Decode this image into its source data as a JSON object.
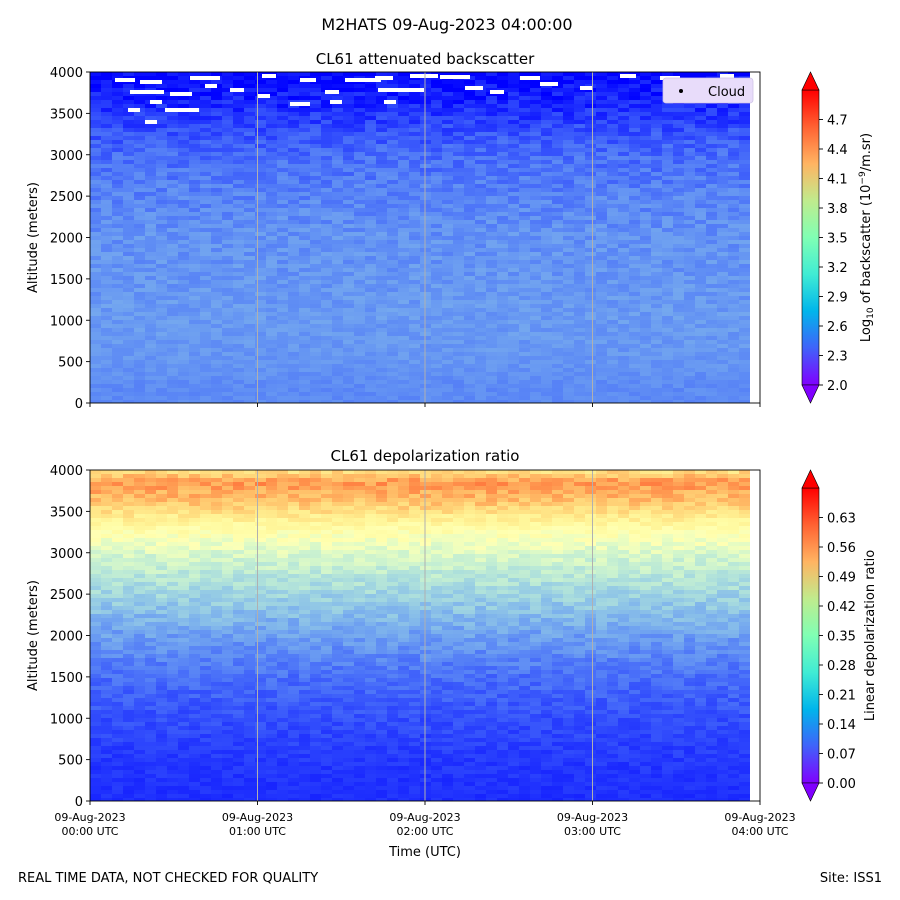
{
  "figure": {
    "suptitle": "M2HATS 09-Aug-2023 04:00:00",
    "footer_left": "REAL TIME DATA, NOT CHECKED FOR QUALITY",
    "footer_right": "Site: ISS1"
  },
  "chart_data": [
    {
      "type": "heatmap",
      "title": "CL61 attenuated backscatter",
      "ylabel": "Altitude (meters)",
      "xlabel": "",
      "x_range": [
        "09-Aug-2023 00:00 UTC",
        "09-Aug-2023 04:00 UTC"
      ],
      "ylim": [
        0,
        4000
      ],
      "y_ticks": [
        0,
        500,
        1000,
        1500,
        2000,
        2500,
        3000,
        3500,
        4000
      ],
      "x_tick_labels": [],
      "grid": "vertical at each hour",
      "legend": {
        "position": "upper-right",
        "entries": [
          "Cloud"
        ]
      },
      "colorbar": {
        "label": "Log10 of backscatter (10^-9/m.sr)",
        "label_base": "Log",
        "label_sub": "10",
        "label_mid": " of backscatter (10",
        "label_sup": "−9",
        "label_end": "/m.sr)",
        "range": [
          2.0,
          5.0
        ],
        "ticks": [
          "2.0",
          "2.3",
          "2.6",
          "2.9",
          "3.2",
          "3.5",
          "3.8",
          "4.1",
          "4.4",
          "4.7"
        ],
        "colormap": "rainbow",
        "extend": "both"
      },
      "profile": [
        {
          "altitude": 0,
          "value": 2.55
        },
        {
          "altitude": 200,
          "value": 2.55
        },
        {
          "altitude": 500,
          "value": 2.6
        },
        {
          "altitude": 1000,
          "value": 2.62
        },
        {
          "altitude": 1500,
          "value": 2.6
        },
        {
          "altitude": 2000,
          "value": 2.58
        },
        {
          "altitude": 2500,
          "value": 2.52
        },
        {
          "altitude": 3000,
          "value": 2.42
        },
        {
          "altitude": 3300,
          "value": 2.3
        },
        {
          "altitude": 3600,
          "value": 2.15
        },
        {
          "altitude": 4000,
          "value": 2.0
        }
      ]
    },
    {
      "type": "heatmap",
      "title": "CL61 depolarization ratio",
      "ylabel": "Altitude (meters)",
      "xlabel": "Time (UTC)",
      "x_range": [
        "09-Aug-2023 00:00 UTC",
        "09-Aug-2023 04:00 UTC"
      ],
      "ylim": [
        0,
        4000
      ],
      "y_ticks": [
        0,
        500,
        1000,
        1500,
        2000,
        2500,
        3000,
        3500,
        4000
      ],
      "x_tick_labels": [
        {
          "date": "09-Aug-2023",
          "time": "00:00 UTC"
        },
        {
          "date": "09-Aug-2023",
          "time": "01:00 UTC"
        },
        {
          "date": "09-Aug-2023",
          "time": "02:00 UTC"
        },
        {
          "date": "09-Aug-2023",
          "time": "03:00 UTC"
        },
        {
          "date": "09-Aug-2023",
          "time": "04:00 UTC"
        }
      ],
      "grid": "vertical at each hour",
      "colorbar": {
        "label": "Linear depolarization ratio",
        "range": [
          0.0,
          0.7
        ],
        "ticks": [
          "0.00",
          "0.07",
          "0.14",
          "0.21",
          "0.28",
          "0.35",
          "0.42",
          "0.49",
          "0.56",
          "0.63"
        ],
        "colormap": "rainbow",
        "extend": "both"
      },
      "profile": [
        {
          "altitude": 0,
          "value": 0.04
        },
        {
          "altitude": 500,
          "value": 0.05
        },
        {
          "altitude": 1000,
          "value": 0.07
        },
        {
          "altitude": 1500,
          "value": 0.1
        },
        {
          "altitude": 2000,
          "value": 0.15
        },
        {
          "altitude": 2500,
          "value": 0.22
        },
        {
          "altitude": 3000,
          "value": 0.3
        },
        {
          "altitude": 3300,
          "value": 0.38
        },
        {
          "altitude": 3600,
          "value": 0.5
        },
        {
          "altitude": 3850,
          "value": 0.56
        },
        {
          "altitude": 4000,
          "value": 0.45
        }
      ]
    }
  ]
}
